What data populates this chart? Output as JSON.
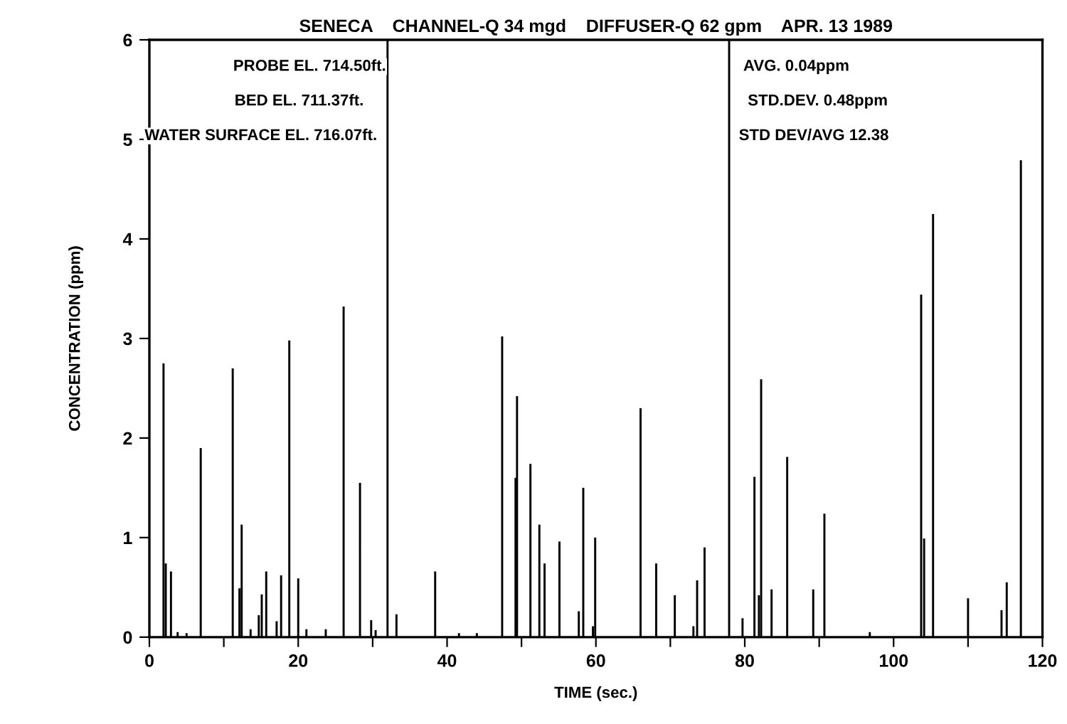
{
  "chart_data": {
    "type": "bar",
    "title": "SENECA    CHANNEL-Q 34 mgd    DIFFUSER-Q 62 gpm    APR. 13 1989",
    "xlabel": "TIME (sec.)",
    "ylabel": "CONCENTRATION (ppm)",
    "x": [
      1.9,
      2.2,
      2.9,
      3.8,
      5.0,
      6.9,
      11.2,
      12.1,
      12.4,
      13.6,
      14.7,
      15.1,
      15.7,
      17.1,
      17.7,
      18.8,
      20.0,
      21.1,
      23.7,
      26.1,
      28.3,
      29.8,
      30.4,
      32.0,
      33.2,
      38.4,
      41.6,
      44.0,
      47.4,
      49.2,
      49.4,
      51.2,
      52.4,
      53.1,
      55.1,
      57.7,
      58.3,
      59.6,
      59.9,
      66.0,
      68.1,
      70.6,
      73.1,
      73.6,
      74.6,
      77.9,
      79.7,
      81.3,
      81.9,
      82.2,
      83.6,
      85.7,
      89.2,
      90.7,
      96.8,
      103.7,
      104.1,
      105.3,
      110.0,
      114.5,
      115.2,
      117.1
    ],
    "values": [
      2.75,
      0.74,
      0.66,
      0.05,
      0.04,
      1.9,
      2.7,
      0.49,
      1.13,
      0.08,
      0.22,
      0.43,
      0.66,
      0.16,
      0.62,
      2.98,
      0.59,
      0.08,
      0.08,
      3.32,
      1.55,
      0.17,
      0.07,
      6,
      0.23,
      0.66,
      0.04,
      0.04,
      3.02,
      1.6,
      2.42,
      1.74,
      1.13,
      0.74,
      0.96,
      0.26,
      1.5,
      0.11,
      1.0,
      2.3,
      0.74,
      0.42,
      0.11,
      0.57,
      0.9,
      6,
      0.19,
      1.61,
      0.42,
      2.59,
      0.48,
      1.81,
      0.48,
      1.24,
      0.05,
      3.44,
      0.99,
      4.25,
      0.39,
      0.27,
      0.55,
      4.79
    ],
    "color": "#000000",
    "xlim": [
      0,
      120
    ],
    "xticks": [
      0,
      {
        "value": 10,
        "label": null
      },
      20,
      {
        "value": 30,
        "label": null
      },
      40,
      {
        "value": 50,
        "label": null
      },
      60,
      {
        "value": 70,
        "label": null
      },
      80,
      {
        "value": 90,
        "label": null
      },
      100,
      {
        "value": 110,
        "label": null
      },
      120
    ],
    "ylim": [
      0,
      6
    ],
    "yticks": [
      0,
      1,
      2,
      3,
      4,
      5,
      6
    ],
    "grid": false,
    "annotations": [
      "PROBE EL. 714.50ft.",
      "BED EL. 711.37ft.",
      "WATER SURFACE EL. 716.07ft.",
      "AVG. 0.04ppm",
      "STD.DEV. 0.48ppm",
      "STD DEV/AVG 12.38"
    ]
  }
}
